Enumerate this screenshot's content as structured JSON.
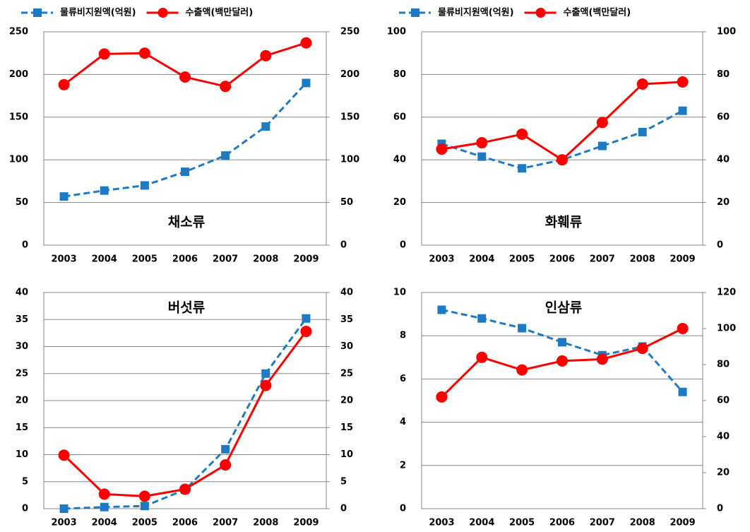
{
  "chart_data": [
    {
      "type": "line",
      "title": "채소류",
      "legend": "top",
      "categories": [
        "2003",
        "2004",
        "2005",
        "2006",
        "2007",
        "2008",
        "2009"
      ],
      "series": [
        {
          "name": "물류비지원액(억원)",
          "color": "#1f7ac4",
          "dash": true,
          "marker": "square",
          "values": [
            57,
            64,
            70,
            86,
            105,
            139,
            190
          ]
        },
        {
          "name": "수출액(백만달러)",
          "color": "#ff0000",
          "marker": "circle",
          "axis": "y2",
          "values": [
            188,
            224,
            225,
            197,
            186,
            222,
            237
          ]
        }
      ],
      "ylim": [
        0,
        250
      ],
      "yticks": [
        0,
        50,
        100,
        150,
        200,
        250
      ],
      "y2lim": [
        0,
        250
      ],
      "y2ticks": [
        0,
        50,
        100,
        150,
        200,
        250
      ],
      "grid": true
    },
    {
      "type": "line",
      "title": "화훼류",
      "legend": "top",
      "categories": [
        "2003",
        "2004",
        "2005",
        "2006",
        "2007",
        "2008",
        "2009"
      ],
      "series": [
        {
          "name": "물류비지원액(억원)",
          "color": "#1f7ac4",
          "dash": true,
          "marker": "square",
          "values": [
            47.5,
            41.5,
            36,
            40,
            46.5,
            53,
            63
          ]
        },
        {
          "name": "수출액(백만달러)",
          "color": "#ff0000",
          "marker": "circle",
          "axis": "y2",
          "values": [
            45,
            48,
            52,
            40,
            57.5,
            75.5,
            76.5
          ]
        }
      ],
      "ylim": [
        0,
        100
      ],
      "yticks": [
        0,
        20,
        40,
        60,
        80,
        100
      ],
      "y2lim": [
        0,
        100
      ],
      "y2ticks": [
        0,
        20,
        40,
        60,
        80,
        100
      ],
      "grid": true
    },
    {
      "type": "line",
      "title": "버섯류",
      "categories": [
        "2003",
        "2004",
        "2005",
        "2006",
        "2007",
        "2008",
        "2009"
      ],
      "series": [
        {
          "color": "#1f7ac4",
          "dash": true,
          "marker": "square",
          "values": [
            0,
            0.3,
            0.5,
            3.5,
            11,
            25,
            35.2
          ]
        },
        {
          "color": "#ff0000",
          "marker": "circle",
          "axis": "y2",
          "values": [
            9.9,
            2.7,
            2.3,
            3.6,
            8.1,
            22.8,
            32.8
          ]
        }
      ],
      "ylim": [
        0,
        40
      ],
      "yticks": [
        0,
        5,
        10,
        15,
        20,
        25,
        30,
        35,
        40
      ],
      "y2lim": [
        0,
        40
      ],
      "y2ticks": [
        0,
        5,
        10,
        15,
        20,
        25,
        30,
        35,
        40
      ],
      "grid": true
    },
    {
      "type": "line",
      "title": "인삼류",
      "categories": [
        "2003",
        "2004",
        "2005",
        "2006",
        "2007",
        "2008",
        "2009"
      ],
      "series": [
        {
          "color": "#1f7ac4",
          "dash": true,
          "marker": "square",
          "values": [
            9.2,
            8.8,
            8.35,
            7.7,
            7.1,
            7.5,
            5.4
          ]
        },
        {
          "color": "#ff0000",
          "marker": "circle",
          "axis": "y2",
          "values": [
            62,
            84,
            77,
            82,
            83,
            89,
            100
          ]
        }
      ],
      "ylim": [
        0,
        10
      ],
      "yticks": [
        0,
        2,
        4,
        6,
        8,
        10
      ],
      "y2lim": [
        0,
        120
      ],
      "y2ticks": [
        0,
        20,
        40,
        60,
        80,
        100,
        120
      ],
      "grid": true
    }
  ]
}
